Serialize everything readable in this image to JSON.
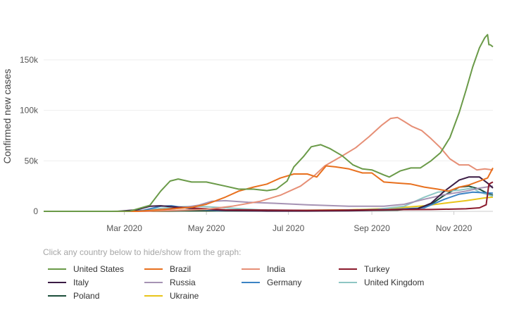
{
  "chart_data": {
    "type": "line",
    "title": "",
    "ylabel": "Confirmed new cases",
    "xlabel": "",
    "ylim": [
      0,
      180000
    ],
    "x_range": [
      "2020-01-01",
      "2020-11-30"
    ],
    "x_ticks": [
      {
        "date": "2020-03-01",
        "label": "Mar 2020"
      },
      {
        "date": "2020-05-01",
        "label": "May 2020"
      },
      {
        "date": "2020-07-01",
        "label": "Jul 2020"
      },
      {
        "date": "2020-09-01",
        "label": "Sep 2020"
      },
      {
        "date": "2020-11-01",
        "label": "Nov 2020"
      }
    ],
    "y_ticks": [
      {
        "value": 0,
        "label": "0"
      },
      {
        "value": 50000,
        "label": "50k"
      },
      {
        "value": 100000,
        "label": "100k"
      },
      {
        "value": 150000,
        "label": "150k"
      }
    ],
    "grid": true,
    "legend_caption": "Click any country below to hide/show from the graph:",
    "series": [
      {
        "name": "United States",
        "color": "#6a9a48",
        "points": [
          [
            "2020-01-01",
            0
          ],
          [
            "2020-02-20",
            0
          ],
          [
            "2020-03-05",
            200
          ],
          [
            "2020-03-20",
            6000
          ],
          [
            "2020-03-28",
            20000
          ],
          [
            "2020-04-04",
            30000
          ],
          [
            "2020-04-10",
            32000
          ],
          [
            "2020-04-20",
            29000
          ],
          [
            "2020-05-01",
            29000
          ],
          [
            "2020-05-15",
            25000
          ],
          [
            "2020-05-25",
            22000
          ],
          [
            "2020-06-05",
            22000
          ],
          [
            "2020-06-15",
            20500
          ],
          [
            "2020-06-22",
            22000
          ],
          [
            "2020-06-30",
            30000
          ],
          [
            "2020-07-05",
            44000
          ],
          [
            "2020-07-12",
            54000
          ],
          [
            "2020-07-18",
            64000
          ],
          [
            "2020-07-25",
            66000
          ],
          [
            "2020-08-01",
            62000
          ],
          [
            "2020-08-10",
            55000
          ],
          [
            "2020-08-18",
            46000
          ],
          [
            "2020-08-25",
            42000
          ],
          [
            "2020-09-01",
            41000
          ],
          [
            "2020-09-10",
            36000
          ],
          [
            "2020-09-14",
            34000
          ],
          [
            "2020-09-22",
            40000
          ],
          [
            "2020-09-30",
            43000
          ],
          [
            "2020-10-07",
            43000
          ],
          [
            "2020-10-15",
            50000
          ],
          [
            "2020-10-22",
            58000
          ],
          [
            "2020-10-29",
            73000
          ],
          [
            "2020-11-05",
            98000
          ],
          [
            "2020-11-10",
            120000
          ],
          [
            "2020-11-15",
            143000
          ],
          [
            "2020-11-20",
            162000
          ],
          [
            "2020-11-24",
            172000
          ],
          [
            "2020-11-26",
            175000
          ],
          [
            "2020-11-27",
            165000
          ],
          [
            "2020-11-28",
            165000
          ],
          [
            "2020-11-30",
            163000
          ]
        ]
      },
      {
        "name": "Brazil",
        "color": "#e8701e",
        "points": [
          [
            "2020-01-01",
            0
          ],
          [
            "2020-03-10",
            0
          ],
          [
            "2020-04-01",
            2000
          ],
          [
            "2020-04-20",
            4000
          ],
          [
            "2020-05-01",
            7000
          ],
          [
            "2020-05-15",
            14000
          ],
          [
            "2020-05-25",
            20000
          ],
          [
            "2020-06-05",
            24000
          ],
          [
            "2020-06-15",
            27000
          ],
          [
            "2020-06-25",
            33000
          ],
          [
            "2020-07-05",
            37000
          ],
          [
            "2020-07-15",
            37000
          ],
          [
            "2020-07-22",
            34000
          ],
          [
            "2020-07-29",
            45000
          ],
          [
            "2020-08-05",
            44000
          ],
          [
            "2020-08-15",
            42000
          ],
          [
            "2020-08-25",
            38000
          ],
          [
            "2020-09-01",
            38000
          ],
          [
            "2020-09-10",
            29000
          ],
          [
            "2020-09-20",
            28000
          ],
          [
            "2020-09-30",
            27000
          ],
          [
            "2020-10-10",
            24000
          ],
          [
            "2020-10-20",
            22000
          ],
          [
            "2020-10-28",
            20000
          ],
          [
            "2020-11-05",
            24000
          ],
          [
            "2020-11-12",
            26000
          ],
          [
            "2020-11-20",
            30000
          ],
          [
            "2020-11-26",
            33000
          ],
          [
            "2020-11-30",
            43000
          ]
        ]
      },
      {
        "name": "India",
        "color": "#e68f76",
        "points": [
          [
            "2020-01-01",
            0
          ],
          [
            "2020-03-15",
            0
          ],
          [
            "2020-04-10",
            1000
          ],
          [
            "2020-05-01",
            2000
          ],
          [
            "2020-05-20",
            5000
          ],
          [
            "2020-06-10",
            10000
          ],
          [
            "2020-06-25",
            16000
          ],
          [
            "2020-07-10",
            25000
          ],
          [
            "2020-07-20",
            35000
          ],
          [
            "2020-07-28",
            45000
          ],
          [
            "2020-08-10",
            55000
          ],
          [
            "2020-08-20",
            63000
          ],
          [
            "2020-08-30",
            74000
          ],
          [
            "2020-09-08",
            85000
          ],
          [
            "2020-09-15",
            92000
          ],
          [
            "2020-09-20",
            93000
          ],
          [
            "2020-09-25",
            89000
          ],
          [
            "2020-10-01",
            84000
          ],
          [
            "2020-10-08",
            80000
          ],
          [
            "2020-10-15",
            72000
          ],
          [
            "2020-10-22",
            63000
          ],
          [
            "2020-10-29",
            52000
          ],
          [
            "2020-11-05",
            46000
          ],
          [
            "2020-11-12",
            46000
          ],
          [
            "2020-11-18",
            41000
          ],
          [
            "2020-11-24",
            42000
          ],
          [
            "2020-11-30",
            41000
          ]
        ]
      },
      {
        "name": "Turkey",
        "color": "#8b1a2c",
        "points": [
          [
            "2020-01-01",
            0
          ],
          [
            "2020-03-15",
            0
          ],
          [
            "2020-04-01",
            2000
          ],
          [
            "2020-04-12",
            4000
          ],
          [
            "2020-04-25",
            3000
          ],
          [
            "2020-05-15",
            1500
          ],
          [
            "2020-06-15",
            1200
          ],
          [
            "2020-07-15",
            1000
          ],
          [
            "2020-08-15",
            1200
          ],
          [
            "2020-09-15",
            1700
          ],
          [
            "2020-10-15",
            1800
          ],
          [
            "2020-11-10",
            2500
          ],
          [
            "2020-11-20",
            3500
          ],
          [
            "2020-11-25",
            6500
          ],
          [
            "2020-11-27",
            27000
          ],
          [
            "2020-11-30",
            29000
          ]
        ]
      },
      {
        "name": "Italy",
        "color": "#3b1c44",
        "points": [
          [
            "2020-01-01",
            0
          ],
          [
            "2020-02-25",
            0
          ],
          [
            "2020-03-10",
            1500
          ],
          [
            "2020-03-20",
            5000
          ],
          [
            "2020-03-28",
            5500
          ],
          [
            "2020-04-10",
            4000
          ],
          [
            "2020-04-25",
            2500
          ],
          [
            "2020-05-15",
            900
          ],
          [
            "2020-06-15",
            300
          ],
          [
            "2020-07-15",
            250
          ],
          [
            "2020-08-15",
            500
          ],
          [
            "2020-09-15",
            1500
          ],
          [
            "2020-10-05",
            2500
          ],
          [
            "2020-10-15",
            8000
          ],
          [
            "2020-10-25",
            20000
          ],
          [
            "2020-11-05",
            31000
          ],
          [
            "2020-11-12",
            34000
          ],
          [
            "2020-11-20",
            34000
          ],
          [
            "2020-11-26",
            28000
          ],
          [
            "2020-11-30",
            23000
          ]
        ]
      },
      {
        "name": "Russia",
        "color": "#a693b4",
        "points": [
          [
            "2020-01-01",
            0
          ],
          [
            "2020-03-20",
            0
          ],
          [
            "2020-04-10",
            3000
          ],
          [
            "2020-04-25",
            6000
          ],
          [
            "2020-05-05",
            10000
          ],
          [
            "2020-05-15",
            10500
          ],
          [
            "2020-06-01",
            9000
          ],
          [
            "2020-06-20",
            8000
          ],
          [
            "2020-07-15",
            6500
          ],
          [
            "2020-08-15",
            5000
          ],
          [
            "2020-09-10",
            5000
          ],
          [
            "2020-09-25",
            7000
          ],
          [
            "2020-10-10",
            12000
          ],
          [
            "2020-10-25",
            16500
          ],
          [
            "2020-11-10",
            20000
          ],
          [
            "2020-11-20",
            23000
          ],
          [
            "2020-11-30",
            25000
          ]
        ]
      },
      {
        "name": "Germany",
        "color": "#3b83c4",
        "points": [
          [
            "2020-01-01",
            0
          ],
          [
            "2020-03-01",
            0
          ],
          [
            "2020-03-15",
            1000
          ],
          [
            "2020-03-28",
            5000
          ],
          [
            "2020-04-05",
            5500
          ],
          [
            "2020-04-20",
            2500
          ],
          [
            "2020-05-10",
            800
          ],
          [
            "2020-06-15",
            500
          ],
          [
            "2020-07-15",
            500
          ],
          [
            "2020-08-15",
            1200
          ],
          [
            "2020-09-15",
            1800
          ],
          [
            "2020-10-10",
            3500
          ],
          [
            "2020-10-25",
            12000
          ],
          [
            "2020-11-05",
            17000
          ],
          [
            "2020-11-15",
            19000
          ],
          [
            "2020-11-30",
            18000
          ]
        ]
      },
      {
        "name": "United Kingdom",
        "color": "#8ec6c4",
        "points": [
          [
            "2020-01-01",
            0
          ],
          [
            "2020-03-10",
            0
          ],
          [
            "2020-03-25",
            2500
          ],
          [
            "2020-04-10",
            4500
          ],
          [
            "2020-04-25",
            5000
          ],
          [
            "2020-05-15",
            3500
          ],
          [
            "2020-06-10",
            1500
          ],
          [
            "2020-07-10",
            700
          ],
          [
            "2020-08-10",
            1000
          ],
          [
            "2020-09-05",
            2000
          ],
          [
            "2020-09-25",
            5000
          ],
          [
            "2020-10-10",
            14000
          ],
          [
            "2020-10-20",
            19000
          ],
          [
            "2020-11-05",
            21000
          ],
          [
            "2020-11-15",
            23000
          ],
          [
            "2020-11-20",
            19000
          ],
          [
            "2020-11-30",
            15000
          ]
        ]
      },
      {
        "name": "Poland",
        "color": "#1d4e3b",
        "points": [
          [
            "2020-01-01",
            0
          ],
          [
            "2020-03-10",
            0
          ],
          [
            "2020-04-15",
            400
          ],
          [
            "2020-06-15",
            400
          ],
          [
            "2020-08-15",
            800
          ],
          [
            "2020-09-20",
            1200
          ],
          [
            "2020-10-05",
            3000
          ],
          [
            "2020-10-15",
            7000
          ],
          [
            "2020-10-25",
            16000
          ],
          [
            "2020-11-05",
            24000
          ],
          [
            "2020-11-12",
            25000
          ],
          [
            "2020-11-20",
            22000
          ],
          [
            "2020-11-27",
            17000
          ],
          [
            "2020-11-30",
            16000
          ]
        ]
      },
      {
        "name": "Ukraine",
        "color": "#e8c41a",
        "points": [
          [
            "2020-01-01",
            0
          ],
          [
            "2020-03-20",
            0
          ],
          [
            "2020-04-15",
            400
          ],
          [
            "2020-06-15",
            700
          ],
          [
            "2020-08-15",
            1500
          ],
          [
            "2020-09-15",
            3000
          ],
          [
            "2020-10-10",
            5500
          ],
          [
            "2020-10-25",
            8000
          ],
          [
            "2020-11-10",
            10500
          ],
          [
            "2020-11-25",
            13500
          ],
          [
            "2020-11-30",
            14000
          ]
        ]
      }
    ]
  }
}
